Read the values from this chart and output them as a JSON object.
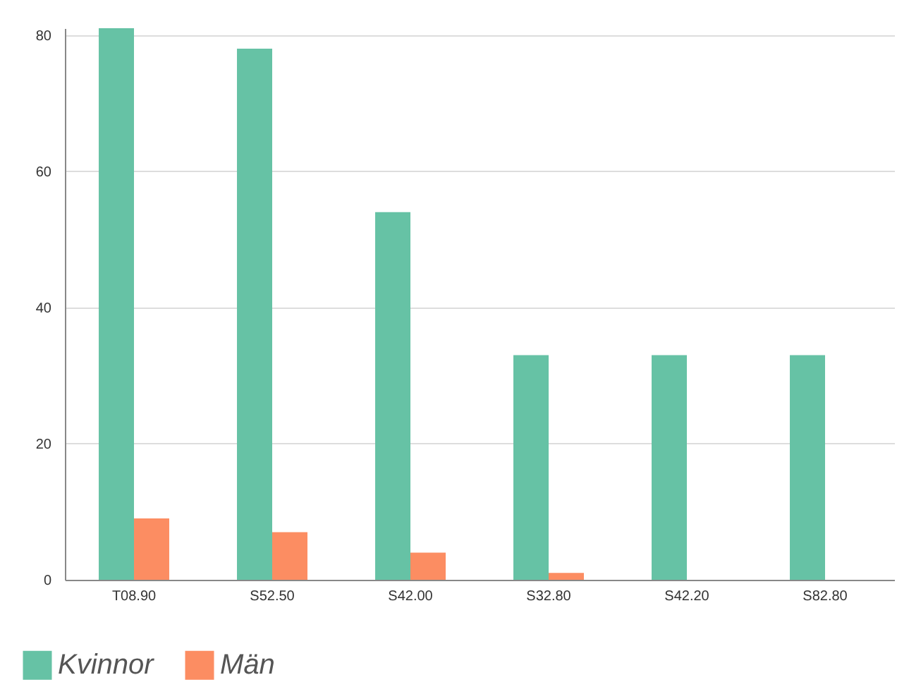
{
  "chart_data": {
    "type": "bar",
    "categories": [
      "T08.90",
      "S52.50",
      "S42.00",
      "S32.80",
      "S42.20",
      "S82.80"
    ],
    "series": [
      {
        "name": "Kvinnor",
        "color": "#66c2a5",
        "values": [
          81,
          78,
          54,
          33,
          33,
          33
        ]
      },
      {
        "name": "Män",
        "color": "#fc8d62",
        "values": [
          9,
          7,
          4,
          1,
          0,
          0
        ]
      }
    ],
    "ylim": [
      0,
      81
    ],
    "yticks": [
      0,
      20,
      40,
      60,
      80
    ],
    "grid": "y",
    "legend": "bottom left"
  }
}
